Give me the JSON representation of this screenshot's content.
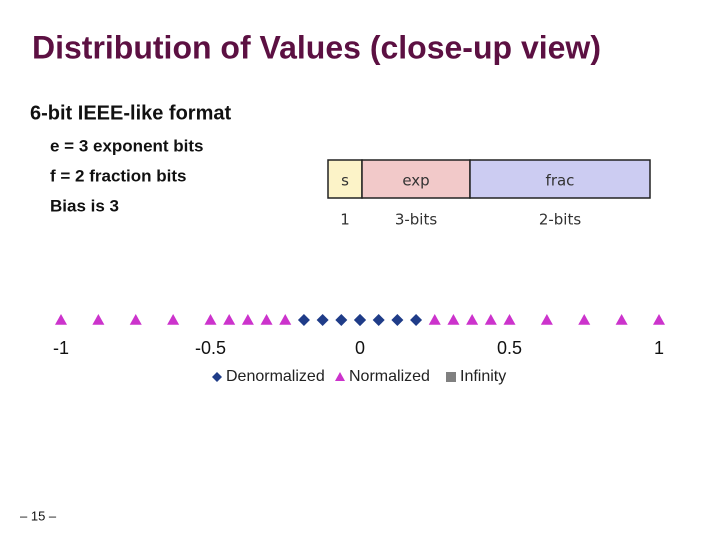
{
  "title": "Distribution of Values (close-up view)",
  "heading": "6-bit IEEE-like format",
  "bullets": [
    "e = 3 exponent bits",
    "f = 2 fraction bits",
    "Bias is 3"
  ],
  "format_box": {
    "cells": [
      "s",
      "exp",
      "frac"
    ],
    "widths": [
      "1",
      "3-bits",
      "2-bits"
    ]
  },
  "page_number": "– 15 –",
  "chart_data": {
    "type": "numberline",
    "xlim": [
      -1,
      1
    ],
    "xticks": [
      -1,
      -0.5,
      0,
      0.5,
      1
    ],
    "series": [
      {
        "name": "Denormalized",
        "color": "#1f3c88",
        "marker": "diamond",
        "values": [
          -0.1875,
          -0.125,
          -0.0625,
          0,
          0,
          0.0625,
          0.125,
          0.1875
        ]
      },
      {
        "name": "Normalized",
        "color": "#cc33cc",
        "marker": "triangle",
        "values": [
          -1,
          -0.875,
          -0.75,
          -0.625,
          -0.5,
          -0.4375,
          -0.375,
          -0.3125,
          -0.25,
          0.25,
          0.3125,
          0.375,
          0.4375,
          0.5,
          0.625,
          0.75,
          0.875,
          1
        ]
      },
      {
        "name": "Infinity",
        "color": "#808080",
        "marker": "square",
        "values": []
      }
    ]
  }
}
